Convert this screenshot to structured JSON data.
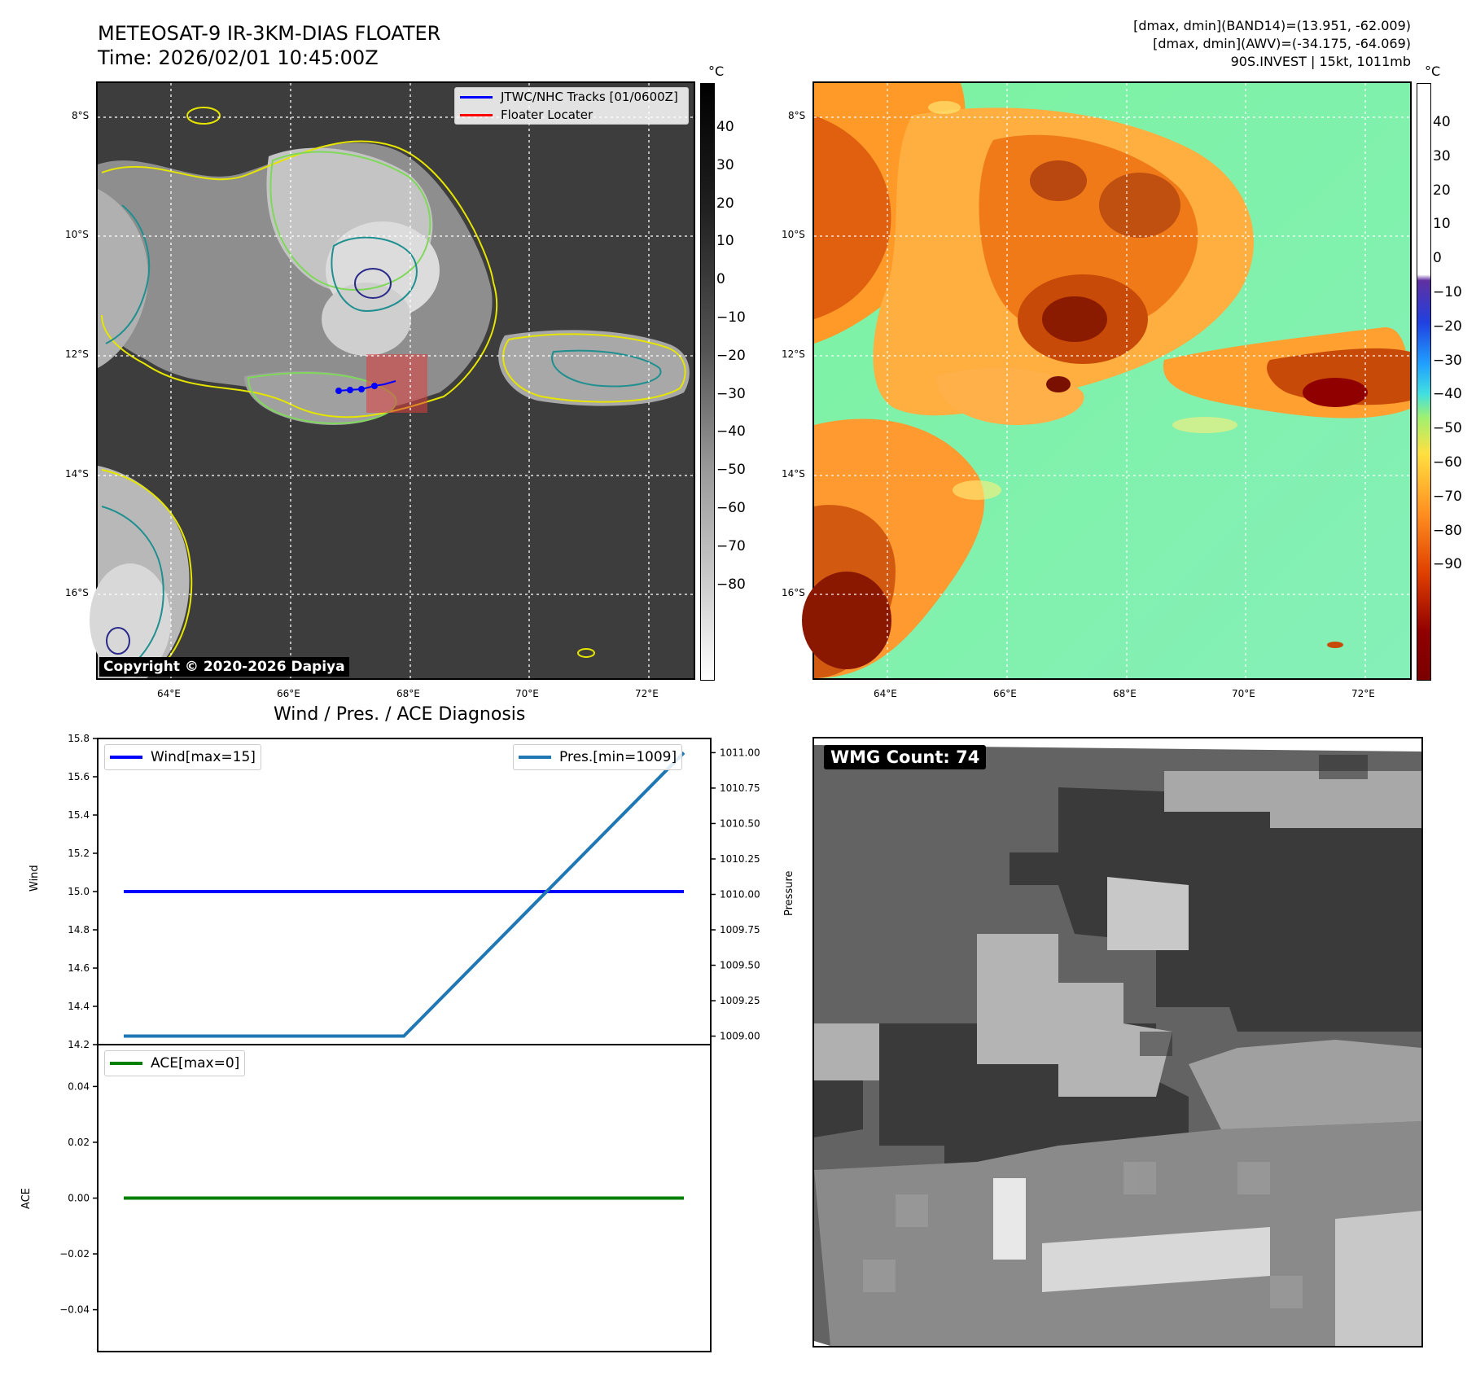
{
  "header": {
    "title_line1": "METEOSAT-9 IR-3KM-DIAS FLOATER",
    "title_line2": "Time: 2026/02/01 10:45:00Z",
    "info_line1": "[dmax, dmin](BAND14)=(13.951, -62.009)",
    "info_line2": "[dmax, dmin](AWV)=(-34.175, -64.069)",
    "info_line3": "90S.INVEST | 15kt, 1011mb"
  },
  "map": {
    "lat_labels": [
      "8°S",
      "10°S",
      "12°S",
      "14°S",
      "16°S"
    ],
    "lon_labels": [
      "64°E",
      "66°E",
      "68°E",
      "70°E",
      "72°E"
    ],
    "legend_tracks": "JTWC/NHC Tracks [01/0600Z]",
    "legend_locater": "Floater Locater",
    "copyright": "Copyright © 2020-2026 Dapiya",
    "cb_unit": "°C"
  },
  "colorbar_gray": {
    "unit": "°C",
    "ticks": [
      "40",
      "30",
      "20",
      "10",
      "0",
      "−10",
      "−20",
      "−30",
      "−40",
      "−50",
      "−60",
      "−70",
      "−80"
    ]
  },
  "colorbar_color": {
    "unit": "°C",
    "ticks": [
      "40",
      "30",
      "20",
      "10",
      "0",
      "−10",
      "−20",
      "−30",
      "−40",
      "−50",
      "−60",
      "−70",
      "−80",
      "−90"
    ]
  },
  "diagnosis": {
    "title": "Wind / Pres. / ACE Diagnosis",
    "wind_ylabel": "Wind",
    "pres_ylabel": "Pressure",
    "ace_ylabel": "ACE",
    "wind_legend": "Wind[max=15]",
    "pres_legend": "Pres.[min=1009]",
    "ace_legend": "ACE[max=0]",
    "wind_ticks": [
      "15.8",
      "15.6",
      "15.4",
      "15.2",
      "15.0",
      "14.8",
      "14.6",
      "14.4",
      "14.2"
    ],
    "pres_ticks": [
      "1011.00",
      "1010.75",
      "1010.50",
      "1010.25",
      "1010.00",
      "1009.75",
      "1009.50",
      "1009.25",
      "1009.00"
    ],
    "ace_ticks": [
      "0.04",
      "0.02",
      "0.00",
      "−0.02",
      "−0.04"
    ]
  },
  "wmg": {
    "label": "WMG Count: 74"
  },
  "chart_data": [
    {
      "type": "line",
      "title": "Wind / Pres. / ACE Diagnosis",
      "ylabel": "Wind",
      "ylim": [
        14.2,
        15.8
      ],
      "series": [
        {
          "name": "Wind[max=15]",
          "color": "#0000ff",
          "x": [
            0,
            1
          ],
          "values": [
            15.0,
            15.0
          ]
        }
      ]
    },
    {
      "type": "line",
      "ylabel": "Pressure",
      "ylim": [
        1008.94,
        1011.1
      ],
      "series": [
        {
          "name": "Pres.[min=1009]",
          "color": "#1f77b4",
          "x": [
            0,
            0.5,
            1
          ],
          "values": [
            1009.0,
            1009.0,
            1011.0
          ]
        }
      ]
    },
    {
      "type": "line",
      "ylabel": "ACE",
      "ylim": [
        -0.055,
        0.055
      ],
      "series": [
        {
          "name": "ACE[max=0]",
          "color": "#008000",
          "x": [
            0,
            1
          ],
          "values": [
            0.0,
            0.0
          ]
        }
      ]
    }
  ]
}
